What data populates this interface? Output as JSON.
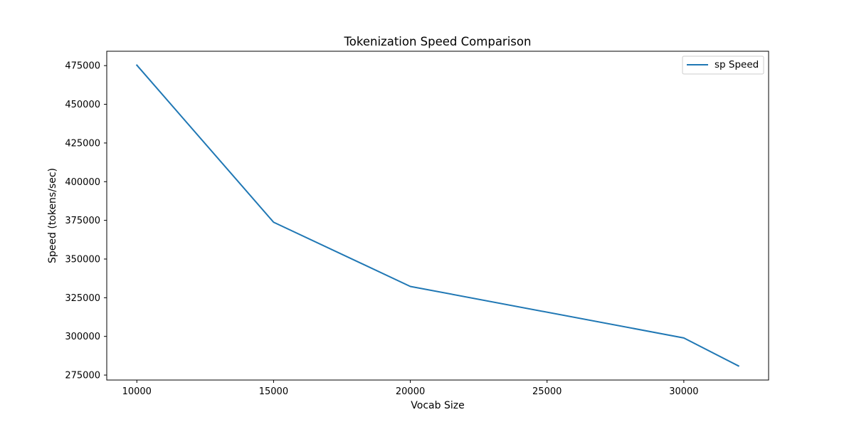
{
  "chart_data": {
    "type": "line",
    "title": "Tokenization Speed Comparison",
    "xlabel": "Vocab Size",
    "ylabel": "Speed (tokens/sec)",
    "x": [
      10000,
      15000,
      20000,
      30000,
      32000
    ],
    "series": [
      {
        "name": "sp Speed",
        "values": [
          475300,
          373800,
          332300,
          299000,
          280900
        ],
        "color": "#1f77b4"
      }
    ],
    "xlim": [
      8900,
      33100
    ],
    "ylim": [
      271800,
      484300
    ],
    "xticks": [
      10000,
      15000,
      20000,
      25000,
      30000
    ],
    "yticks": [
      275000,
      300000,
      325000,
      350000,
      375000,
      400000,
      425000,
      450000,
      475000
    ],
    "grid": false,
    "legend_position": "top-right"
  }
}
